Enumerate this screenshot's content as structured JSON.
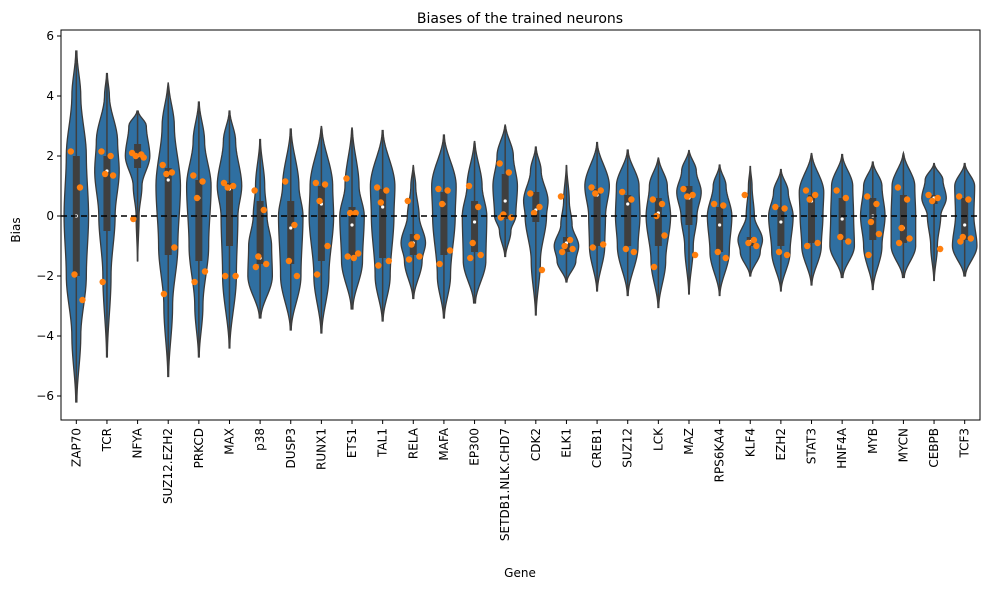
{
  "chart_data": {
    "type": "violin",
    "title": "Biases of the trained neurons",
    "xlabel": "Gene",
    "ylabel": "Bias",
    "ylim": [
      -6.8,
      6.2
    ],
    "yticks": [
      -6,
      -4,
      -2,
      0,
      2,
      4,
      6
    ],
    "reference_line": {
      "y": 0,
      "style": "dashed"
    },
    "colors": {
      "violin": "#2f6fa1",
      "points": "#ff7f0e",
      "box": "#3f3f3f",
      "refline": "#000000"
    },
    "categories": [
      {
        "name": "ZAP70",
        "min": -6.2,
        "max": 5.5,
        "q1": -2.0,
        "q3": 2.0,
        "median": 0.0,
        "profile": [
          [
            -6.2,
            0.005
          ],
          [
            -4,
            0.04
          ],
          [
            -2,
            0.09
          ],
          [
            0,
            0.11
          ],
          [
            2,
            0.09
          ],
          [
            4,
            0.04
          ],
          [
            5.5,
            0.005
          ]
        ],
        "points": [
          2.15,
          0.95,
          -1.95,
          -2.8
        ]
      },
      {
        "name": "TCR",
        "min": -4.7,
        "max": 4.75,
        "q1": -0.5,
        "q3": 2.0,
        "median": 1.5,
        "profile": [
          [
            -4.7,
            0.005
          ],
          [
            -2,
            0.05
          ],
          [
            0,
            0.1
          ],
          [
            1.5,
            0.15
          ],
          [
            2.5,
            0.13
          ],
          [
            4,
            0.03
          ],
          [
            4.75,
            0.005
          ]
        ],
        "points": [
          2.15,
          2.0,
          1.4,
          1.35,
          -2.2
        ]
      },
      {
        "name": "NFYA",
        "min": -1.5,
        "max": 3.5,
        "q1": 1.6,
        "q3": 2.4,
        "median": 2.0,
        "profile": [
          [
            -1.5,
            0.005
          ],
          [
            0,
            0.05
          ],
          [
            1,
            0.15
          ],
          [
            2,
            0.42
          ],
          [
            3,
            0.3
          ],
          [
            3.5,
            0.02
          ]
        ],
        "points": [
          2.1,
          2.05,
          2.0,
          1.95,
          -0.1
        ]
      },
      {
        "name": "SUZ12.EZH2",
        "min": -5.35,
        "max": 4.45,
        "q1": -1.3,
        "q3": 1.6,
        "median": 1.2,
        "profile": [
          [
            -5.35,
            0.005
          ],
          [
            -3,
            0.05
          ],
          [
            -1,
            0.11
          ],
          [
            1,
            0.14
          ],
          [
            3,
            0.07
          ],
          [
            4.45,
            0.005
          ]
        ],
        "points": [
          1.7,
          1.45,
          1.4,
          -1.05,
          -2.6
        ]
      },
      {
        "name": "PRKCD",
        "min": -4.7,
        "max": 3.8,
        "q1": -1.5,
        "q3": 1.2,
        "median": 0.6,
        "profile": [
          [
            -4.7,
            0.005
          ],
          [
            -3,
            0.05
          ],
          [
            -1,
            0.12
          ],
          [
            1,
            0.15
          ],
          [
            2.5,
            0.07
          ],
          [
            3.8,
            0.005
          ]
        ],
        "points": [
          1.35,
          1.15,
          0.6,
          -1.85,
          -2.2
        ]
      },
      {
        "name": "MAX",
        "min": -4.4,
        "max": 3.5,
        "q1": -1.0,
        "q3": 1.1,
        "median": 0.9,
        "profile": [
          [
            -4.4,
            0.005
          ],
          [
            -2,
            0.09
          ],
          [
            0,
            0.11
          ],
          [
            1,
            0.16
          ],
          [
            2.5,
            0.08
          ],
          [
            3.5,
            0.005
          ]
        ],
        "points": [
          1.1,
          1.0,
          0.95,
          -2.0,
          -2.0
        ]
      },
      {
        "name": "p38",
        "min": -3.4,
        "max": 2.55,
        "q1": -1.6,
        "q3": 0.5,
        "median": -1.4,
        "profile": [
          [
            -3.4,
            0.01
          ],
          [
            -2,
            0.16
          ],
          [
            -1,
            0.15
          ],
          [
            0,
            0.09
          ],
          [
            1,
            0.06
          ],
          [
            2.55,
            0.005
          ]
        ],
        "points": [
          0.85,
          0.2,
          -1.35,
          -1.6,
          -1.7
        ]
      },
      {
        "name": "DUSP3",
        "min": -3.8,
        "max": 2.9,
        "q1": -1.6,
        "q3": 0.5,
        "median": -0.4,
        "profile": [
          [
            -3.8,
            0.005
          ],
          [
            -2,
            0.1
          ],
          [
            0,
            0.12
          ],
          [
            1,
            0.08
          ],
          [
            2.9,
            0.005
          ]
        ],
        "points": [
          1.15,
          -0.3,
          -1.5,
          -2.0
        ]
      },
      {
        "name": "RUNX1",
        "min": -3.9,
        "max": 3.0,
        "q1": -1.5,
        "q3": 1.0,
        "median": 0.4,
        "profile": [
          [
            -3.9,
            0.005
          ],
          [
            -2,
            0.08
          ],
          [
            0,
            0.13
          ],
          [
            1,
            0.12
          ],
          [
            3.0,
            0.005
          ]
        ],
        "points": [
          1.1,
          1.05,
          0.5,
          -1.0,
          -1.95
        ]
      },
      {
        "name": "ETS1",
        "min": -3.1,
        "max": 2.95,
        "q1": -1.3,
        "q3": 0.3,
        "median": -0.3,
        "profile": [
          [
            -3.1,
            0.01
          ],
          [
            -1.5,
            0.12
          ],
          [
            0,
            0.14
          ],
          [
            1,
            0.08
          ],
          [
            2.95,
            0.005
          ]
        ],
        "points": [
          1.25,
          0.1,
          0.1,
          -1.25,
          -1.35,
          -1.4
        ]
      },
      {
        "name": "TAL1",
        "min": -3.5,
        "max": 2.85,
        "q1": -1.4,
        "q3": 0.9,
        "median": 0.3,
        "profile": [
          [
            -3.5,
            0.005
          ],
          [
            -2,
            0.08
          ],
          [
            0,
            0.12
          ],
          [
            1,
            0.13
          ],
          [
            2.85,
            0.005
          ]
        ],
        "points": [
          0.95,
          0.85,
          0.45,
          -1.5,
          -1.65
        ]
      },
      {
        "name": "RELA",
        "min": -2.75,
        "max": 1.7,
        "q1": -1.3,
        "q3": -0.6,
        "median": -0.9,
        "profile": [
          [
            -2.75,
            0.01
          ],
          [
            -1.5,
            0.18
          ],
          [
            -0.9,
            0.25
          ],
          [
            0,
            0.12
          ],
          [
            1,
            0.05
          ],
          [
            1.7,
            0.005
          ]
        ],
        "points": [
          0.5,
          -0.7,
          -0.95,
          -1.35,
          -1.45
        ]
      },
      {
        "name": "MAFA",
        "min": -3.4,
        "max": 2.7,
        "q1": -1.3,
        "q3": 0.8,
        "median": 0.4,
        "profile": [
          [
            -3.4,
            0.005
          ],
          [
            -2,
            0.07
          ],
          [
            0,
            0.12
          ],
          [
            1,
            0.13
          ],
          [
            2.7,
            0.005
          ]
        ],
        "points": [
          0.9,
          0.85,
          0.4,
          -1.15,
          -1.6
        ]
      },
      {
        "name": "EP300",
        "min": -2.9,
        "max": 2.5,
        "q1": -1.2,
        "q3": 0.5,
        "median": -0.2,
        "profile": [
          [
            -2.9,
            0.01
          ],
          [
            -1.5,
            0.12
          ],
          [
            0,
            0.13
          ],
          [
            1,
            0.08
          ],
          [
            2.5,
            0.005
          ]
        ],
        "points": [
          1.0,
          0.3,
          -0.9,
          -1.3,
          -1.4
        ]
      },
      {
        "name": "SETDB1.NLK.CHD7",
        "min": -1.35,
        "max": 3.05,
        "q1": -0.1,
        "q3": 1.4,
        "median": 0.5,
        "profile": [
          [
            -1.35,
            0.005
          ],
          [
            -0.5,
            0.07
          ],
          [
            0,
            0.13
          ],
          [
            1,
            0.15
          ],
          [
            2,
            0.1
          ],
          [
            3.05,
            0.005
          ]
        ],
        "points": [
          1.75,
          1.45,
          0.05,
          -0.05,
          -0.05
        ]
      },
      {
        "name": "CDK2",
        "min": -3.3,
        "max": 2.3,
        "q1": -0.2,
        "q3": 0.8,
        "median": 0.2,
        "profile": [
          [
            -3.3,
            0.005
          ],
          [
            -1.5,
            0.06
          ],
          [
            0,
            0.14
          ],
          [
            0.5,
            0.16
          ],
          [
            1.5,
            0.07
          ],
          [
            2.3,
            0.005
          ]
        ],
        "points": [
          0.75,
          0.3,
          0.1,
          -1.8
        ]
      },
      {
        "name": "ELK1",
        "min": -2.2,
        "max": 1.7,
        "q1": -1.2,
        "q3": -0.7,
        "median": -0.9,
        "profile": [
          [
            -2.2,
            0.01
          ],
          [
            -1.5,
            0.2
          ],
          [
            -1,
            0.26
          ],
          [
            -0.3,
            0.12
          ],
          [
            0.5,
            0.06
          ],
          [
            1.7,
            0.005
          ]
        ],
        "points": [
          0.65,
          -0.8,
          -1.0,
          -1.1,
          -1.2
        ]
      },
      {
        "name": "CREB1",
        "min": -2.5,
        "max": 2.45,
        "q1": -1.0,
        "q3": 0.9,
        "median": 0.7,
        "profile": [
          [
            -2.5,
            0.005
          ],
          [
            -1,
            0.1
          ],
          [
            0,
            0.11
          ],
          [
            1,
            0.16
          ],
          [
            2.45,
            0.005
          ]
        ],
        "points": [
          0.95,
          0.85,
          0.75,
          -0.95,
          -1.05
        ]
      },
      {
        "name": "SUZ12",
        "min": -2.65,
        "max": 2.2,
        "q1": -1.0,
        "q3": 0.7,
        "median": 0.4,
        "profile": [
          [
            -2.65,
            0.005
          ],
          [
            -1,
            0.11
          ],
          [
            0,
            0.13
          ],
          [
            1,
            0.12
          ],
          [
            2.2,
            0.005
          ]
        ],
        "points": [
          0.8,
          0.55,
          -1.1,
          -1.2
        ]
      },
      {
        "name": "LCK",
        "min": -3.05,
        "max": 1.95,
        "q1": -1.0,
        "q3": 0.6,
        "median": 0.1,
        "profile": [
          [
            -3.05,
            0.005
          ],
          [
            -1.5,
            0.09
          ],
          [
            0,
            0.15
          ],
          [
            1,
            0.11
          ],
          [
            1.95,
            0.005
          ]
        ],
        "points": [
          0.55,
          0.4,
          0.0,
          -0.65,
          -1.7
        ]
      },
      {
        "name": "MAZ",
        "min": -2.6,
        "max": 2.2,
        "q1": -0.3,
        "q3": 1.0,
        "median": 0.6,
        "profile": [
          [
            -2.6,
            0.005
          ],
          [
            -1,
            0.07
          ],
          [
            0,
            0.13
          ],
          [
            0.8,
            0.2
          ],
          [
            1.5,
            0.12
          ],
          [
            2.2,
            0.005
          ]
        ],
        "points": [
          0.9,
          0.7,
          0.65,
          -1.3
        ]
      },
      {
        "name": "RPS6KA4",
        "min": -2.65,
        "max": 1.7,
        "q1": -1.2,
        "q3": 0.3,
        "median": -0.3,
        "profile": [
          [
            -2.65,
            0.005
          ],
          [
            -1.2,
            0.15
          ],
          [
            0,
            0.19
          ],
          [
            1,
            0.1
          ],
          [
            1.7,
            0.005
          ]
        ],
        "points": [
          0.4,
          0.35,
          -1.2,
          -1.4
        ]
      },
      {
        "name": "KLF4",
        "min": -2.0,
        "max": 1.65,
        "q1": -1.0,
        "q3": -0.7,
        "median": -0.85,
        "profile": [
          [
            -2.0,
            0.01
          ],
          [
            -1.2,
            0.22
          ],
          [
            -0.8,
            0.27
          ],
          [
            0,
            0.09
          ],
          [
            1,
            0.04
          ],
          [
            1.65,
            0.005
          ]
        ],
        "points": [
          0.7,
          -0.8,
          -0.9,
          -1.0
        ]
      },
      {
        "name": "EZH2",
        "min": -2.5,
        "max": 1.55,
        "q1": -1.0,
        "q3": 0.3,
        "median": -0.2,
        "profile": [
          [
            -2.5,
            0.005
          ],
          [
            -1.2,
            0.15
          ],
          [
            0,
            0.2
          ],
          [
            0.8,
            0.12
          ],
          [
            1.55,
            0.005
          ]
        ],
        "points": [
          0.3,
          0.25,
          -1.2,
          -1.3
        ]
      },
      {
        "name": "STAT3",
        "min": -2.3,
        "max": 2.1,
        "q1": -0.9,
        "q3": 0.7,
        "median": 0.5,
        "profile": [
          [
            -2.3,
            0.005
          ],
          [
            -1,
            0.12
          ],
          [
            0,
            0.14
          ],
          [
            0.8,
            0.15
          ],
          [
            2.1,
            0.005
          ]
        ],
        "points": [
          0.85,
          0.7,
          0.55,
          -0.9,
          -1.0
        ]
      },
      {
        "name": "HNF4A",
        "min": -2.05,
        "max": 2.05,
        "q1": -0.8,
        "q3": 0.6,
        "median": -0.1,
        "profile": [
          [
            -2.05,
            0.01
          ],
          [
            -1,
            0.15
          ],
          [
            0,
            0.14
          ],
          [
            1,
            0.13
          ],
          [
            2.05,
            0.005
          ]
        ],
        "points": [
          0.85,
          0.6,
          -0.7,
          -0.85
        ]
      },
      {
        "name": "MYB",
        "min": -2.45,
        "max": 1.8,
        "q1": -0.8,
        "q3": 0.6,
        "median": 0.0,
        "profile": [
          [
            -2.45,
            0.005
          ],
          [
            -1,
            0.12
          ],
          [
            0,
            0.16
          ],
          [
            1,
            0.12
          ],
          [
            1.8,
            0.005
          ]
        ],
        "points": [
          0.65,
          0.4,
          -0.2,
          -0.6,
          -1.3
        ]
      },
      {
        "name": "MYCN",
        "min": -2.05,
        "max": 2.1,
        "q1": -0.9,
        "q3": 0.7,
        "median": -0.4,
        "profile": [
          [
            -2.05,
            0.01
          ],
          [
            -1,
            0.14
          ],
          [
            0,
            0.14
          ],
          [
            1,
            0.13
          ],
          [
            2.1,
            0.005
          ]
        ],
        "points": [
          0.95,
          0.55,
          -0.4,
          -0.75,
          -0.9
        ]
      },
      {
        "name": "CEBPB",
        "min": -2.15,
        "max": 1.75,
        "q1": 0.4,
        "q3": 0.7,
        "median": 0.6,
        "profile": [
          [
            -2.15,
            0.005
          ],
          [
            -1,
            0.06
          ],
          [
            0,
            0.12
          ],
          [
            0.6,
            0.22
          ],
          [
            1.2,
            0.16
          ],
          [
            1.75,
            0.005
          ]
        ],
        "points": [
          0.7,
          0.6,
          0.5,
          -1.1
        ]
      },
      {
        "name": "TCF3",
        "min": -2.0,
        "max": 1.75,
        "q1": -0.8,
        "q3": 0.6,
        "median": -0.3,
        "profile": [
          [
            -2.0,
            0.01
          ],
          [
            -1,
            0.16
          ],
          [
            0,
            0.12
          ],
          [
            1,
            0.13
          ],
          [
            1.75,
            0.005
          ]
        ],
        "points": [
          0.65,
          0.55,
          -0.7,
          -0.75,
          -0.85
        ]
      }
    ]
  }
}
